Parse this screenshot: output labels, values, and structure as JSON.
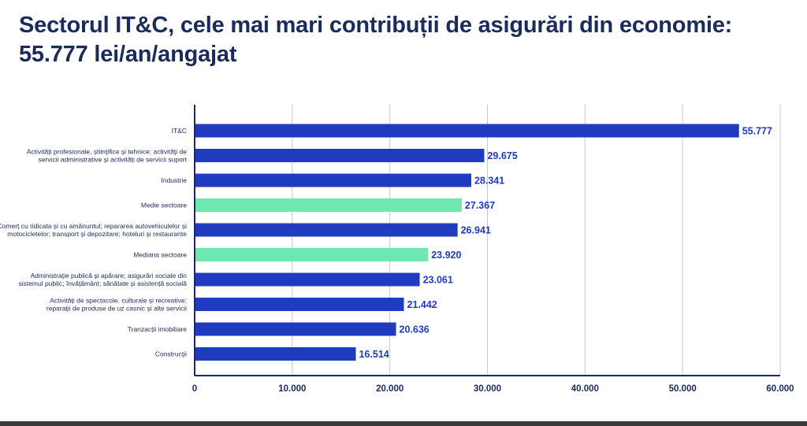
{
  "title_line1": "Sectorul IT&C, cele mai mari contribuții de asigurări din economie:",
  "title_line2": "55.777 lei/an/angajat",
  "colors": {
    "title": "#1a2b5c",
    "bar_default": "#1f3bbf",
    "bar_highlight": "#6ee8b0",
    "value_label": "#1f3bbf",
    "axis": "#1a2b5c",
    "grid": "#c8c8c8"
  },
  "chart_data": {
    "type": "bar",
    "orientation": "horizontal",
    "title": "Sectorul IT&C, cele mai mari contribuții de asigurări din economie: 55.777 lei/an/angajat",
    "xlabel": "",
    "ylabel": "",
    "xlim": [
      0,
      60000
    ],
    "xticks": [
      0,
      10000,
      20000,
      30000,
      40000,
      50000,
      60000
    ],
    "xtick_labels": [
      "0",
      "10.000",
      "20.000",
      "30.000",
      "40.000",
      "50.000",
      "60.000"
    ],
    "grid": true,
    "categories": [
      [
        "IT&C"
      ],
      [
        "Activități profesionale, științifice și tehnice; activități de",
        "servicii administrative și activități de servicii suport"
      ],
      [
        "Industrie"
      ],
      [
        "Medie sectoare"
      ],
      [
        "Comerț cu ridicata și cu amănuntul; repararea autovehiculelor și",
        "motocicletelor; transport și depozitare; hoteluri și restaurante"
      ],
      [
        "Mediana sectoare"
      ],
      [
        "Administrație publică și apărare; asigurări sociale din",
        "sistemul public; învățământ; sănătate și asistență socială"
      ],
      [
        "Activități de spectacole, culturale și recreative;",
        "reparații de produse de uz casnic și alte servicii"
      ],
      [
        "Tranzacții imobiliare"
      ],
      [
        "Construcții"
      ]
    ],
    "values": [
      55777,
      29675,
      28341,
      27367,
      26941,
      23920,
      23061,
      21442,
      20636,
      16514
    ],
    "value_labels": [
      "55.777",
      "29.675",
      "28.341",
      "27.367",
      "26.941",
      "23.920",
      "23.061",
      "21.442",
      "20.636",
      "16.514"
    ],
    "highlight": [
      false,
      false,
      false,
      true,
      false,
      true,
      false,
      false,
      false,
      false
    ]
  }
}
